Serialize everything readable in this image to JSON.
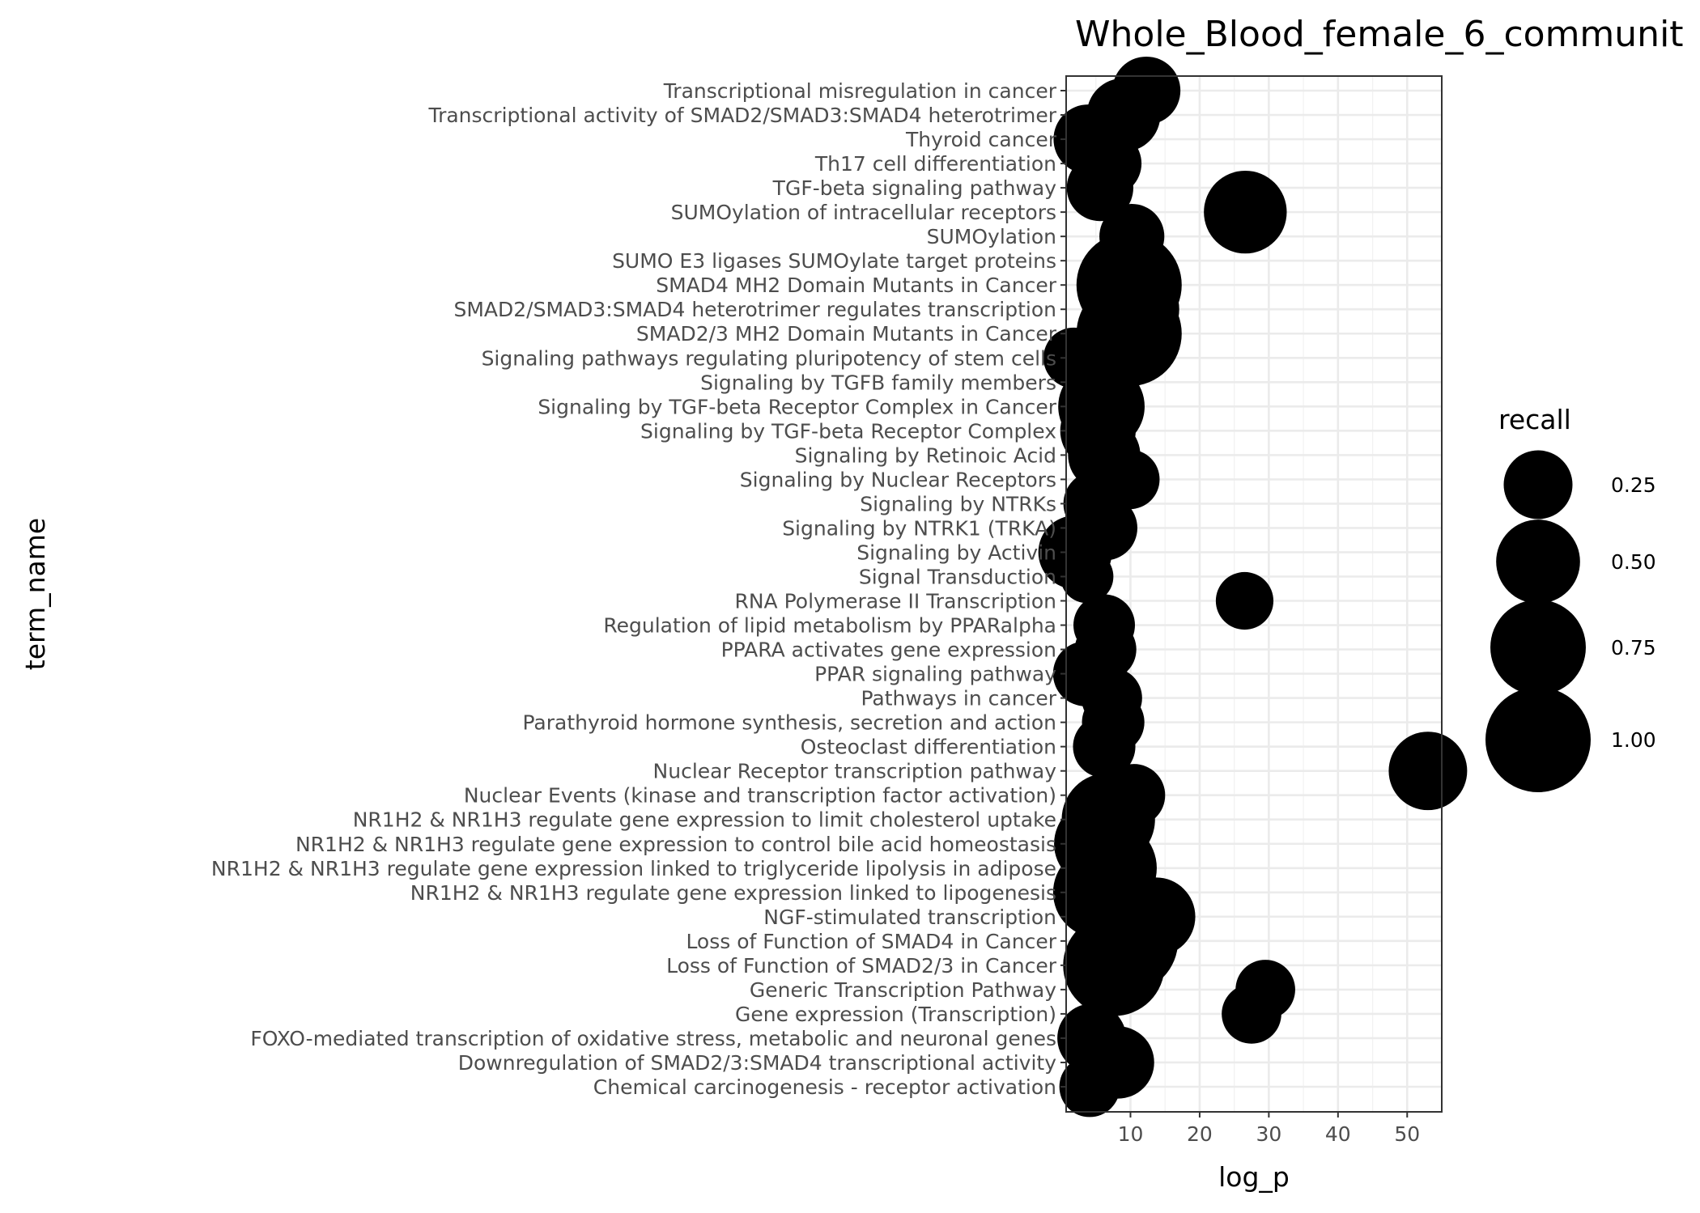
{
  "chart_data": {
    "type": "scatter",
    "title": "Whole_Blood_female_6_communit",
    "xlabel": "log_p",
    "ylabel": "term_name",
    "xlim": [
      0.7,
      55
    ],
    "xticks": [
      10,
      20,
      30,
      40,
      50
    ],
    "grid": true,
    "legend": {
      "title": "recall",
      "position": "right",
      "values": [
        0.25,
        0.5,
        0.75,
        1.0
      ],
      "labels": [
        "0.25",
        "0.50",
        "0.75",
        "1.00"
      ]
    },
    "points": [
      {
        "term": "Transcriptional misregulation in cancer",
        "log_p": 12.3,
        "recall": 0.24
      },
      {
        "term": "Transcriptional activity of SMAD2/SMAD3:SMAD4 heterotrimer",
        "log_p": 9.0,
        "recall": 0.32
      },
      {
        "term": "Thyroid cancer",
        "log_p": 3.9,
        "recall": 0.26
      },
      {
        "term": "Th17 cell differentiation",
        "log_p": 6.9,
        "recall": 0.2
      },
      {
        "term": "TGF-beta signaling pathway",
        "log_p": 5.6,
        "recall": 0.22
      },
      {
        "term": "SUMOylation of intracellular receptors",
        "log_p": 26.6,
        "recall": 0.48
      },
      {
        "term": "SUMOylation",
        "log_p": 10.2,
        "recall": 0.2
      },
      {
        "term": "SUMO E3 ligases SUMOylate target proteins",
        "log_p": 10.2,
        "recall": 0.26
      },
      {
        "term": "SMAD4 MH2 Domain Mutants in Cancer",
        "log_p": 9.8,
        "recall": 1.0
      },
      {
        "term": "SMAD2/SMAD3:SMAD4 heterotrimer regulates transcription",
        "log_p": 10.8,
        "recall": 0.55
      },
      {
        "term": "SMAD2/3 MH2 Domain Mutants in Cancer",
        "log_p": 9.8,
        "recall": 1.0
      },
      {
        "term": "Signaling pathways regulating pluripotency of stem cells",
        "log_p": 1.8,
        "recall": 0.15
      },
      {
        "term": "Signaling by TGFB family members",
        "log_p": 5.8,
        "recall": 0.28
      },
      {
        "term": "Signaling by TGF-beta Receptor Complex in Cancer",
        "log_p": 5.8,
        "recall": 0.55
      },
      {
        "term": "Signaling by TGF-beta Receptor Complex",
        "log_p": 5.3,
        "recall": 0.35
      },
      {
        "term": "Signaling by Retinoic Acid",
        "log_p": 6.2,
        "recall": 0.3
      },
      {
        "term": "Signaling by Nuclear Receptors",
        "log_p": 9.9,
        "recall": 0.14
      },
      {
        "term": "Signaling by NTRKs",
        "log_p": 5.0,
        "recall": 0.2
      },
      {
        "term": "Signaling by NTRK1 (TRKA)",
        "log_p": 6.3,
        "recall": 0.2
      },
      {
        "term": "Signaling by Activin",
        "log_p": 2.0,
        "recall": 0.32
      },
      {
        "term": "Signal Transduction",
        "log_p": 3.7,
        "recall": 0.08
      },
      {
        "term": "RNA Polymerase II Transcription",
        "log_p": 26.5,
        "recall": 0.12
      },
      {
        "term": "Regulation of lipid metabolism by PPARalpha",
        "log_p": 6.2,
        "recall": 0.16
      },
      {
        "term": "PPARA activates gene expression",
        "log_p": 6.4,
        "recall": 0.16
      },
      {
        "term": "PPAR signaling pathway",
        "log_p": 3.5,
        "recall": 0.2
      },
      {
        "term": "Pathways in cancer",
        "log_p": 7.3,
        "recall": 0.15
      },
      {
        "term": "Parathyroid hormone synthesis, secretion and action",
        "log_p": 7.5,
        "recall": 0.17
      },
      {
        "term": "Osteoclast differentiation",
        "log_p": 6.2,
        "recall": 0.17
      },
      {
        "term": "Nuclear Receptor transcription pathway",
        "log_p": 53.0,
        "recall": 0.4
      },
      {
        "term": "Nuclear Events (kinase and transcription factor activation)",
        "log_p": 10.5,
        "recall": 0.17
      },
      {
        "term": "NR1H2 & NR1H3 regulate gene expression to limit cholesterol uptake",
        "log_p": 6.8,
        "recall": 0.7
      },
      {
        "term": "NR1H2 & NR1H3 regulate gene expression to control bile acid homeostasis",
        "log_p": 5.2,
        "recall": 0.55
      },
      {
        "term": "NR1H2 & NR1H3 regulate gene expression linked to triglyceride lipolysis in adipose",
        "log_p": 6.9,
        "recall": 0.75
      },
      {
        "term": "NR1H2 & NR1H3 regulate gene expression linked to lipogenesis",
        "log_p": 5.4,
        "recall": 0.65
      },
      {
        "term": "NGF-stimulated transcription",
        "log_p": 13.7,
        "recall": 0.4
      },
      {
        "term": "Loss of Function of SMAD4 in Cancer",
        "log_p": 9.4,
        "recall": 0.95
      },
      {
        "term": "Loss of Function of SMAD2/3 in Cancer",
        "log_p": 7.6,
        "recall": 0.9
      },
      {
        "term": "Generic Transcription Pathway",
        "log_p": 29.5,
        "recall": 0.14
      },
      {
        "term": "Gene expression (Transcription)",
        "log_p": 27.5,
        "recall": 0.14
      },
      {
        "term": "FOXO-mediated transcription of oxidative stress, metabolic and neuronal genes",
        "log_p": 4.4,
        "recall": 0.25
      },
      {
        "term": "Downregulation of SMAD2/3:SMAD4 transcriptional activity",
        "log_p": 8.2,
        "recall": 0.3
      },
      {
        "term": "Chemical carcinogenesis - receptor activation",
        "log_p": 4.1,
        "recall": 0.15
      }
    ]
  }
}
